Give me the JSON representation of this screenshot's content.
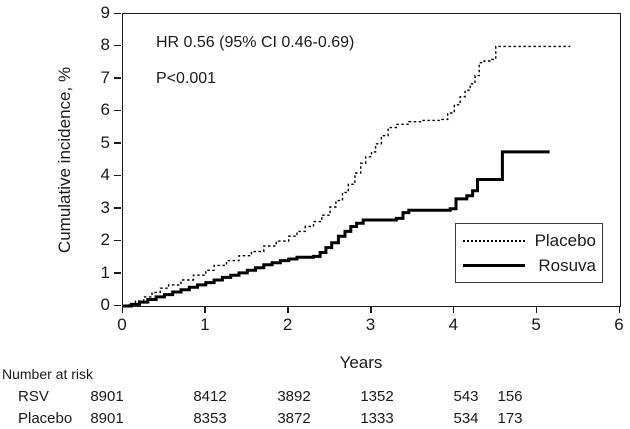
{
  "chart_data": {
    "type": "line",
    "subtype": "kaplan-meier-step",
    "annotations": {
      "hr": "HR 0.56 (95% CI 0.46-0.69)",
      "p": "P<0.001"
    },
    "xlabel": "Years",
    "ylabel": "Cumulative incidence, %",
    "xlim": [
      0,
      6
    ],
    "ylim": [
      0,
      9
    ],
    "xticks": [
      0,
      1,
      2,
      3,
      4,
      5,
      6
    ],
    "yticks": [
      0,
      1,
      2,
      3,
      4,
      5,
      6,
      7,
      8,
      9
    ],
    "grid": false,
    "legend": {
      "position": "lower-right",
      "entries": [
        {
          "label": "Placebo",
          "style": "dotted"
        },
        {
          "label": "Rosuva",
          "style": "solid"
        }
      ]
    },
    "series": [
      {
        "name": "Placebo",
        "style": "dotted",
        "points": [
          [
            0,
            0
          ],
          [
            0.07,
            0.06
          ],
          [
            0.15,
            0.15
          ],
          [
            0.25,
            0.28
          ],
          [
            0.35,
            0.42
          ],
          [
            0.45,
            0.55
          ],
          [
            0.55,
            0.65
          ],
          [
            0.7,
            0.8
          ],
          [
            0.85,
            0.95
          ],
          [
            1,
            1.1
          ],
          [
            1.1,
            1.25
          ],
          [
            1.25,
            1.4
          ],
          [
            1.4,
            1.55
          ],
          [
            1.55,
            1.68
          ],
          [
            1.7,
            1.85
          ],
          [
            1.85,
            2.0
          ],
          [
            2,
            2.15
          ],
          [
            2.1,
            2.3
          ],
          [
            2.2,
            2.45
          ],
          [
            2.3,
            2.6
          ],
          [
            2.4,
            2.8
          ],
          [
            2.5,
            3.05
          ],
          [
            2.57,
            3.25
          ],
          [
            2.65,
            3.5
          ],
          [
            2.72,
            3.75
          ],
          [
            2.8,
            4.1
          ],
          [
            2.87,
            4.4
          ],
          [
            2.93,
            4.6
          ],
          [
            3,
            4.75
          ],
          [
            3.05,
            5.0
          ],
          [
            3.12,
            5.25
          ],
          [
            3.2,
            5.5
          ],
          [
            3.3,
            5.6
          ],
          [
            3.45,
            5.68
          ],
          [
            3.6,
            5.72
          ],
          [
            3.85,
            5.75
          ],
          [
            3.92,
            5.95
          ],
          [
            4,
            6.2
          ],
          [
            4.07,
            6.45
          ],
          [
            4.13,
            6.65
          ],
          [
            4.19,
            6.85
          ],
          [
            4.25,
            7.1
          ],
          [
            4.3,
            7.5
          ],
          [
            4.36,
            7.55
          ],
          [
            4.45,
            7.6
          ],
          [
            4.5,
            8.0
          ],
          [
            5.4,
            8.0
          ]
        ]
      },
      {
        "name": "Rosuva",
        "style": "solid",
        "points": [
          [
            0,
            0
          ],
          [
            0.1,
            0.05
          ],
          [
            0.2,
            0.12
          ],
          [
            0.3,
            0.2
          ],
          [
            0.4,
            0.28
          ],
          [
            0.5,
            0.35
          ],
          [
            0.6,
            0.43
          ],
          [
            0.7,
            0.5
          ],
          [
            0.8,
            0.58
          ],
          [
            0.9,
            0.65
          ],
          [
            1,
            0.72
          ],
          [
            1.1,
            0.8
          ],
          [
            1.2,
            0.88
          ],
          [
            1.3,
            0.95
          ],
          [
            1.4,
            1.02
          ],
          [
            1.5,
            1.1
          ],
          [
            1.6,
            1.18
          ],
          [
            1.7,
            1.27
          ],
          [
            1.8,
            1.33
          ],
          [
            1.9,
            1.4
          ],
          [
            2,
            1.45
          ],
          [
            2.1,
            1.5
          ],
          [
            2.3,
            1.53
          ],
          [
            2.38,
            1.65
          ],
          [
            2.45,
            1.8
          ],
          [
            2.52,
            1.95
          ],
          [
            2.6,
            2.15
          ],
          [
            2.68,
            2.3
          ],
          [
            2.75,
            2.45
          ],
          [
            2.82,
            2.55
          ],
          [
            2.9,
            2.65
          ],
          [
            3.3,
            2.7
          ],
          [
            3.38,
            2.88
          ],
          [
            3.45,
            2.95
          ],
          [
            3.95,
            3.0
          ],
          [
            4.02,
            3.3
          ],
          [
            4.15,
            3.4
          ],
          [
            4.22,
            3.55
          ],
          [
            4.28,
            3.9
          ],
          [
            4.58,
            4.75
          ],
          [
            5.15,
            4.75
          ]
        ]
      }
    ],
    "number_at_risk": {
      "title": "Number at risk",
      "rows": [
        {
          "label": "RSV",
          "values": [
            "8901",
            "8412",
            "3892",
            "1352",
            "543",
            "156"
          ]
        },
        {
          "label": "Placebo",
          "values": [
            "8901",
            "8353",
            "3872",
            "1333",
            "534",
            "173"
          ]
        }
      ]
    },
    "colors": {
      "line": "#000000",
      "background": "#ffffff",
      "text": "#1a1a1a"
    }
  }
}
